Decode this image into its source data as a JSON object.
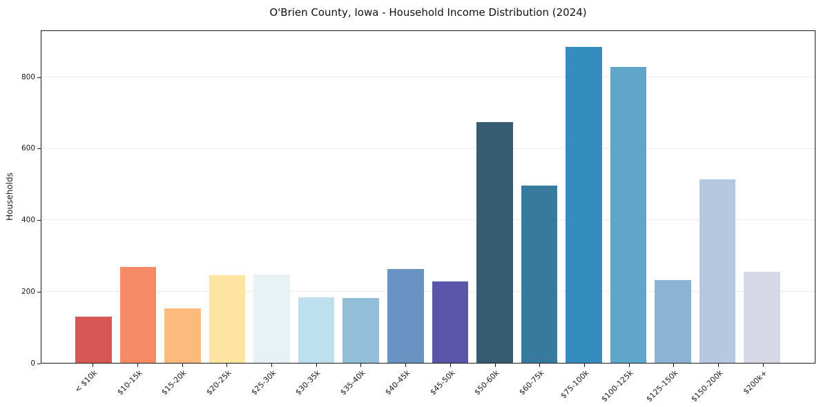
{
  "chart_data": {
    "type": "bar",
    "title": "O'Brien County, Iowa - Household Income Distribution (2024)",
    "xlabel": "",
    "ylabel": "Households",
    "categories": [
      "< $10k",
      "$10-15k",
      "$15-20k",
      "$20-25k",
      "$25-30k",
      "$30-35k",
      "$35-40k",
      "$40-45k",
      "$45-50k",
      "$50-60k",
      "$60-75k",
      "$75-100k",
      "$100-125k",
      "$125-150k",
      "$150-200k",
      "$200k+"
    ],
    "values": [
      130,
      268,
      152,
      245,
      247,
      184,
      182,
      263,
      228,
      675,
      497,
      885,
      830,
      233,
      515,
      255
    ],
    "bar_colors": [
      "#d65754",
      "#f48a66",
      "#fcba7c",
      "#fde4a1",
      "#e6f2f4",
      "#bee0ee",
      "#92bed8",
      "#6a92c2",
      "#5a55a8",
      "#365c71",
      "#387a9e",
      "#358cbe",
      "#60a6ca",
      "#8cb2d4",
      "#b6c8e0",
      "#d6d8e6"
    ],
    "yticks": [
      0,
      200,
      400,
      600,
      800
    ],
    "ylim": [
      0,
      930
    ],
    "grid": "horizontal-only",
    "legend": "none",
    "colors": {
      "spine": "#1a1a1a",
      "gridline": "#ebebeb",
      "background": "#ffffff",
      "text": "#1a1a1a"
    }
  }
}
